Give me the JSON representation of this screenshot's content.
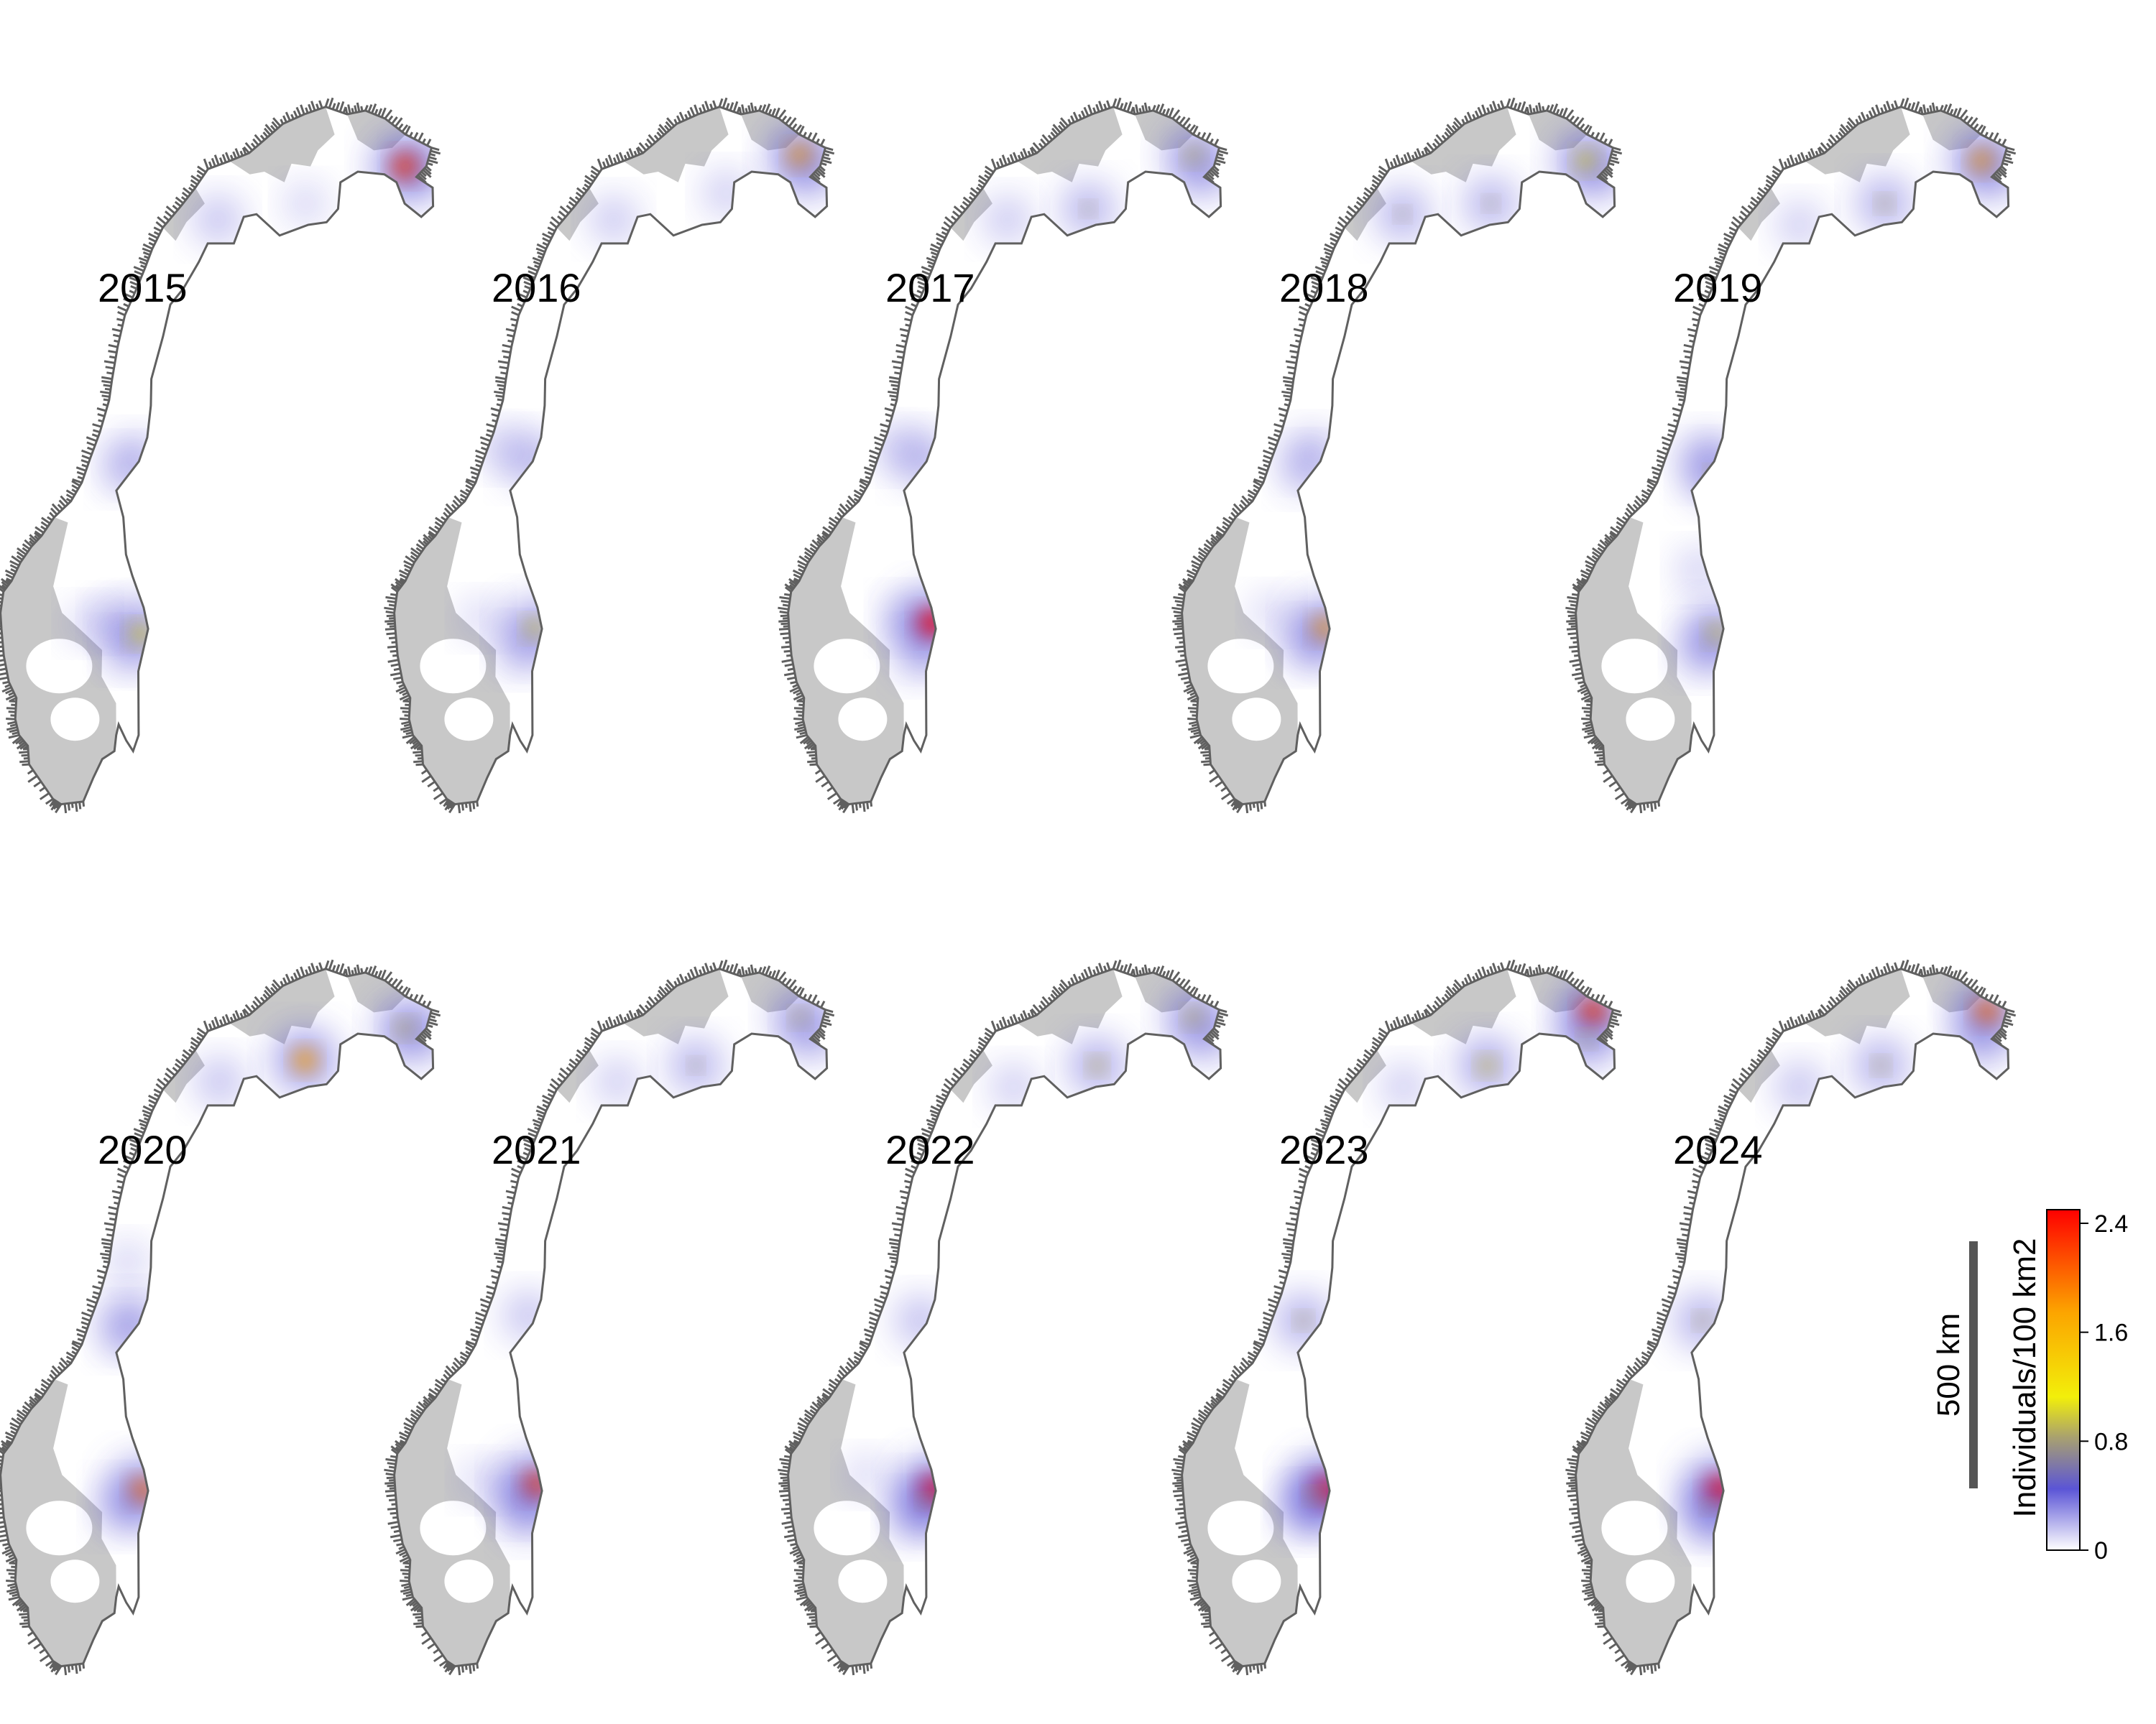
{
  "maps": [
    {
      "year": "2015",
      "hotspots": [
        {
          "lat": 70.0,
          "lon": 29.6,
          "level": 0.95
        },
        {
          "lat": 69.9,
          "lon": 30.3,
          "level": 0.35
        },
        {
          "lat": 69.3,
          "lon": 24.0,
          "level": 0.2
        },
        {
          "lat": 69.0,
          "lon": 19.2,
          "level": 0.4
        },
        {
          "lat": 64.5,
          "lon": 13.2,
          "level": 0.4
        },
        {
          "lat": 64.3,
          "lon": 12.6,
          "level": 0.3
        },
        {
          "lat": 61.2,
          "lon": 12.3,
          "level": 0.8
        },
        {
          "lat": 61.5,
          "lon": 11.0,
          "level": 0.2
        },
        {
          "lat": 61.4,
          "lon": 9.6,
          "level": 0.15
        },
        {
          "lat": 60.9,
          "lon": 11.4,
          "level": 0.2
        }
      ]
    },
    {
      "year": "2016",
      "hotspots": [
        {
          "lat": 70.2,
          "lon": 29.7,
          "level": 0.85
        },
        {
          "lat": 69.9,
          "lon": 30.2,
          "level": 0.4
        },
        {
          "lat": 69.5,
          "lon": 25.5,
          "level": 0.3
        },
        {
          "lat": 69.0,
          "lon": 19.3,
          "level": 0.35
        },
        {
          "lat": 64.5,
          "lon": 13.3,
          "level": 0.5
        },
        {
          "lat": 64.7,
          "lon": 11.9,
          "level": 0.25
        },
        {
          "lat": 61.3,
          "lon": 12.4,
          "level": 0.75
        },
        {
          "lat": 60.9,
          "lon": 11.6,
          "level": 0.35
        },
        {
          "lat": 61.5,
          "lon": 9.6,
          "level": 0.15
        }
      ]
    },
    {
      "year": "2017",
      "hotspots": [
        {
          "lat": 70.2,
          "lon": 29.7,
          "level": 0.7
        },
        {
          "lat": 69.9,
          "lon": 30.2,
          "level": 0.45
        },
        {
          "lat": 69.2,
          "lon": 23.7,
          "level": 0.55
        },
        {
          "lat": 69.0,
          "lon": 19.3,
          "level": 0.35
        },
        {
          "lat": 64.5,
          "lon": 13.2,
          "level": 0.5
        },
        {
          "lat": 64.7,
          "lon": 12.0,
          "level": 0.3
        },
        {
          "lat": 61.4,
          "lon": 12.6,
          "level": 1.0
        },
        {
          "lat": 61.5,
          "lon": 11.2,
          "level": 0.3
        },
        {
          "lat": 60.8,
          "lon": 11.8,
          "level": 0.4
        }
      ]
    },
    {
      "year": "2018",
      "hotspots": [
        {
          "lat": 70.1,
          "lon": 29.6,
          "level": 0.8
        },
        {
          "lat": 69.9,
          "lon": 30.3,
          "level": 0.4
        },
        {
          "lat": 69.3,
          "lon": 24.2,
          "level": 0.55
        },
        {
          "lat": 69.1,
          "lon": 19.4,
          "level": 0.55
        },
        {
          "lat": 64.6,
          "lon": 13.0,
          "level": 0.4
        },
        {
          "lat": 64.3,
          "lon": 12.5,
          "level": 0.35
        },
        {
          "lat": 61.3,
          "lon": 12.5,
          "level": 0.85
        },
        {
          "lat": 61.0,
          "lon": 11.6,
          "level": 0.4
        },
        {
          "lat": 61.6,
          "lon": 9.8,
          "level": 0.15
        }
      ]
    },
    {
      "year": "2019",
      "hotspots": [
        {
          "lat": 70.1,
          "lon": 29.7,
          "level": 0.85
        },
        {
          "lat": 69.9,
          "lon": 30.3,
          "level": 0.35
        },
        {
          "lat": 69.3,
          "lon": 24.2,
          "level": 0.6
        },
        {
          "lat": 68.9,
          "lon": 19.5,
          "level": 0.3
        },
        {
          "lat": 64.5,
          "lon": 13.0,
          "level": 0.5
        },
        {
          "lat": 64.2,
          "lon": 13.3,
          "level": 0.6
        },
        {
          "lat": 61.2,
          "lon": 12.4,
          "level": 0.75
        },
        {
          "lat": 60.9,
          "lon": 11.6,
          "level": 0.45
        },
        {
          "lat": 62.4,
          "lon": 11.9,
          "level": 0.25
        }
      ]
    },
    {
      "year": "2020",
      "hotspots": [
        {
          "lat": 70.0,
          "lon": 29.6,
          "level": 0.7
        },
        {
          "lat": 69.9,
          "lon": 30.3,
          "level": 0.45
        },
        {
          "lat": 69.4,
          "lon": 24.0,
          "level": 0.85
        },
        {
          "lat": 69.0,
          "lon": 19.3,
          "level": 0.4
        },
        {
          "lat": 64.5,
          "lon": 13.0,
          "level": 0.5
        },
        {
          "lat": 64.3,
          "lon": 12.6,
          "level": 0.4
        },
        {
          "lat": 61.3,
          "lon": 12.5,
          "level": 0.9
        },
        {
          "lat": 61.0,
          "lon": 11.4,
          "level": 0.5
        },
        {
          "lat": 65.6,
          "lon": 13.2,
          "level": 0.2
        }
      ]
    },
    {
      "year": "2021",
      "hotspots": [
        {
          "lat": 70.2,
          "lon": 29.7,
          "level": 0.65
        },
        {
          "lat": 69.9,
          "lon": 30.3,
          "level": 0.45
        },
        {
          "lat": 69.3,
          "lon": 23.8,
          "level": 0.55
        },
        {
          "lat": 69.0,
          "lon": 19.5,
          "level": 0.3
        },
        {
          "lat": 64.6,
          "lon": 13.2,
          "level": 0.4
        },
        {
          "lat": 61.4,
          "lon": 12.5,
          "level": 0.95
        },
        {
          "lat": 61.2,
          "lon": 11.6,
          "level": 0.45
        },
        {
          "lat": 60.8,
          "lon": 11.8,
          "level": 0.35
        },
        {
          "lat": 61.5,
          "lon": 9.6,
          "level": 0.15
        }
      ]
    },
    {
      "year": "2022",
      "hotspots": [
        {
          "lat": 70.2,
          "lon": 29.7,
          "level": 0.7
        },
        {
          "lat": 69.9,
          "lon": 30.3,
          "level": 0.5
        },
        {
          "lat": 69.3,
          "lon": 24.2,
          "level": 0.65
        },
        {
          "lat": 68.9,
          "lon": 19.6,
          "level": 0.3
        },
        {
          "lat": 64.5,
          "lon": 13.1,
          "level": 0.45
        },
        {
          "lat": 61.3,
          "lon": 12.7,
          "level": 1.0
        },
        {
          "lat": 61.1,
          "lon": 12.1,
          "level": 0.55
        },
        {
          "lat": 60.8,
          "lon": 11.5,
          "level": 0.4
        },
        {
          "lat": 61.6,
          "lon": 9.2,
          "level": 0.15
        }
      ]
    },
    {
      "year": "2023",
      "hotspots": [
        {
          "lat": 70.3,
          "lon": 30.0,
          "level": 0.95
        },
        {
          "lat": 69.8,
          "lon": 29.5,
          "level": 0.6
        },
        {
          "lat": 69.3,
          "lon": 24.0,
          "level": 0.7
        },
        {
          "lat": 68.9,
          "lon": 19.4,
          "level": 0.3
        },
        {
          "lat": 64.5,
          "lon": 12.5,
          "level": 0.6
        },
        {
          "lat": 61.3,
          "lon": 12.6,
          "level": 1.0
        },
        {
          "lat": 61.2,
          "lon": 11.9,
          "level": 0.6
        },
        {
          "lat": 60.9,
          "lon": 11.4,
          "level": 0.45
        }
      ]
    },
    {
      "year": "2024",
      "hotspots": [
        {
          "lat": 70.3,
          "lon": 30.0,
          "level": 0.9
        },
        {
          "lat": 69.8,
          "lon": 29.5,
          "level": 0.5
        },
        {
          "lat": 69.3,
          "lon": 24.0,
          "level": 0.6
        },
        {
          "lat": 68.9,
          "lon": 19.5,
          "level": 0.4
        },
        {
          "lat": 64.5,
          "lon": 12.8,
          "level": 0.6
        },
        {
          "lat": 61.3,
          "lon": 12.6,
          "level": 1.0
        },
        {
          "lat": 61.0,
          "lon": 11.9,
          "level": 0.55
        },
        {
          "lat": 60.7,
          "lon": 12.1,
          "level": 0.4
        }
      ]
    }
  ],
  "scale_bar": {
    "label": "500 km"
  },
  "legend": {
    "title": "Individuals/100 km2",
    "ticks": [
      "2.4",
      "1.6",
      "0.8",
      "0"
    ],
    "tick_values": [
      2.4,
      1.6,
      0.8,
      0
    ],
    "min": 0,
    "max": 2.5,
    "colors": [
      "#ffffff",
      "#5b55d6",
      "#f2ef0a",
      "#fca400",
      "#fe0000"
    ]
  },
  "colors": {
    "land": "#c8c8c8",
    "habitat": "#ffffff",
    "coast": "#606060",
    "low": "#5b55d6",
    "mid": "#f2ef0a",
    "high": "#fe0000"
  }
}
